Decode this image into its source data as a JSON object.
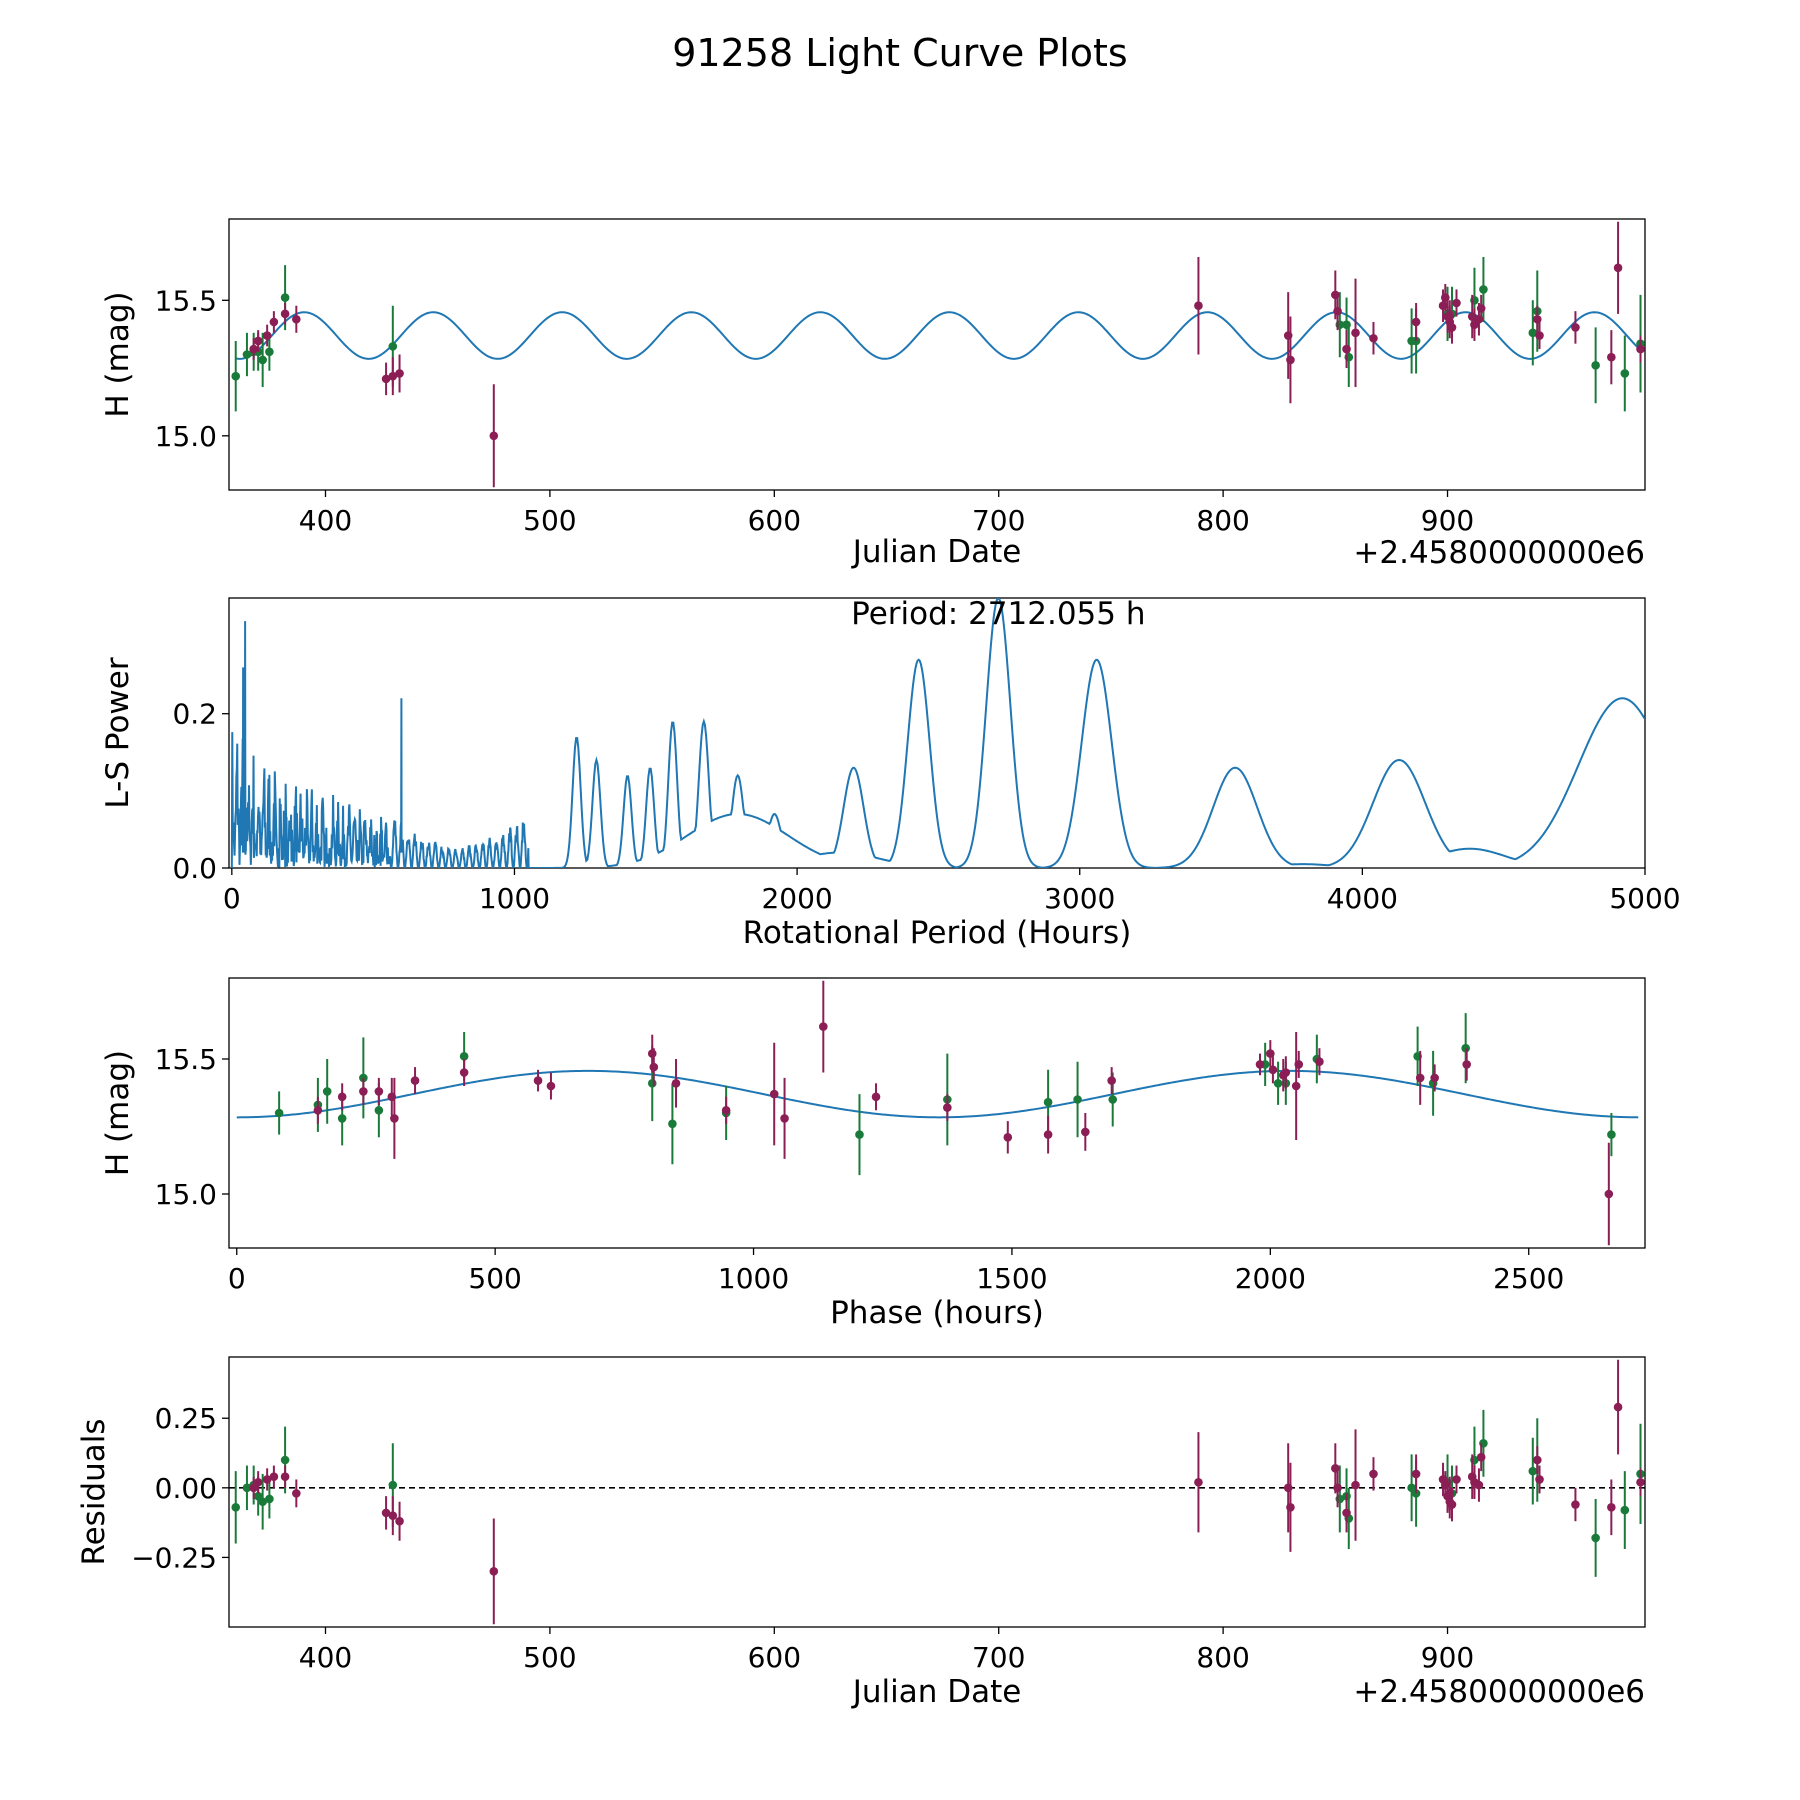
{
  "figure": {
    "title": "91258 Light Curve Plots",
    "colors": {
      "model": "#1f77b4",
      "band_green": "#1a7a3a",
      "band_purple": "#8b1f55",
      "frame": "#000000",
      "zero_line": "#000000"
    }
  },
  "chart_data": [
    {
      "name": "light-curve",
      "type": "scatter",
      "xlabel": "Julian Date",
      "ylabel": "H (mag)",
      "x_offset_label": "+2.4580000000e6",
      "xlim": [
        357,
        988
      ],
      "ylim": [
        14.8,
        15.8
      ],
      "xticks": [
        400,
        500,
        600,
        700,
        800,
        900
      ],
      "yticks": [
        15.0,
        15.5
      ],
      "ytick_labels": [
        "15.0",
        "15.5"
      ],
      "model": {
        "mean": 15.37,
        "amplitude": 0.086,
        "period_days": 57.5,
        "phase_ref": 390.5
      },
      "series": [
        {
          "name": "green-band",
          "color": "#1a7a3a",
          "x": [
            360,
            365,
            368,
            370,
            372,
            375,
            382,
            430,
            852,
            855,
            856,
            884,
            886,
            900,
            902,
            912,
            916,
            938,
            940,
            966,
            979,
            986
          ],
          "y": [
            15.22,
            15.3,
            15.31,
            15.31,
            15.28,
            15.31,
            15.51,
            15.33,
            15.41,
            15.41,
            15.29,
            15.35,
            15.35,
            15.45,
            15.45,
            15.5,
            15.54,
            15.38,
            15.46,
            15.26,
            15.23,
            15.34
          ],
          "err": [
            0.13,
            0.08,
            0.07,
            0.07,
            0.1,
            0.07,
            0.12,
            0.15,
            0.12,
            0.1,
            0.11,
            0.12,
            0.12,
            0.1,
            0.1,
            0.12,
            0.12,
            0.12,
            0.15,
            0.14,
            0.14,
            0.18
          ]
        },
        {
          "name": "purple-band",
          "color": "#8b1f55",
          "x": [
            368,
            370,
            374,
            377,
            382,
            387,
            427,
            430,
            433,
            475,
            789,
            829,
            830,
            850,
            851,
            855,
            859,
            867,
            886,
            898,
            899,
            900,
            901,
            901,
            902,
            904,
            911,
            912,
            914,
            915,
            940,
            941,
            957,
            973,
            976,
            986
          ],
          "y": [
            15.32,
            15.35,
            15.37,
            15.42,
            15.45,
            15.43,
            15.21,
            15.22,
            15.23,
            15.0,
            15.48,
            15.37,
            15.28,
            15.52,
            15.46,
            15.32,
            15.38,
            15.36,
            15.42,
            15.48,
            15.51,
            15.44,
            15.42,
            15.44,
            15.4,
            15.49,
            15.44,
            15.41,
            15.43,
            15.47,
            15.43,
            15.37,
            15.4,
            15.29,
            15.62,
            15.32
          ],
          "err": [
            0.04,
            0.04,
            0.04,
            0.04,
            0.04,
            0.05,
            0.06,
            0.07,
            0.07,
            0.19,
            0.18,
            0.16,
            0.16,
            0.09,
            0.07,
            0.07,
            0.2,
            0.06,
            0.07,
            0.06,
            0.05,
            0.06,
            0.06,
            0.06,
            0.06,
            0.05,
            0.08,
            0.06,
            0.06,
            0.05,
            0.05,
            0.05,
            0.06,
            0.1,
            0.17,
            0.05
          ]
        }
      ]
    },
    {
      "name": "periodogram",
      "type": "line",
      "xlabel": "Rotational Period (Hours)",
      "ylabel": "L-S Power",
      "xlim": [
        -10,
        5000
      ],
      "ylim": [
        0,
        0.35
      ],
      "xticks": [
        0,
        1000,
        2000,
        3000,
        4000,
        5000
      ],
      "yticks": [
        0.0,
        0.2
      ],
      "ytick_labels": [
        "0.0",
        "0.2"
      ],
      "annotation": "Period: 2712.055 h",
      "peaks": [
        {
          "x": 40,
          "y": 0.26,
          "w": 6
        },
        {
          "x": 47,
          "y": 0.32,
          "w": 5
        },
        {
          "x": 600,
          "y": 0.22,
          "w": 8
        },
        {
          "x": 1220,
          "y": 0.17,
          "w": 20
        },
        {
          "x": 1290,
          "y": 0.14,
          "w": 20
        },
        {
          "x": 1400,
          "y": 0.12,
          "w": 20
        },
        {
          "x": 1480,
          "y": 0.13,
          "w": 20
        },
        {
          "x": 1560,
          "y": 0.19,
          "w": 22
        },
        {
          "x": 1670,
          "y": 0.19,
          "w": 25
        },
        {
          "x": 1790,
          "y": 0.12,
          "w": 30
        },
        {
          "x": 1920,
          "y": 0.07,
          "w": 35
        },
        {
          "x": 2200,
          "y": 0.13,
          "w": 50
        },
        {
          "x": 2430,
          "y": 0.27,
          "w": 55
        },
        {
          "x": 2712,
          "y": 0.35,
          "w": 60
        },
        {
          "x": 3060,
          "y": 0.27,
          "w": 75
        },
        {
          "x": 3550,
          "y": 0.13,
          "w": 110
        },
        {
          "x": 4130,
          "y": 0.14,
          "w": 130
        },
        {
          "x": 4920,
          "y": 0.22,
          "w": 220
        }
      ],
      "dips": [
        {
          "x": 1790,
          "y": 0.07,
          "w": 250
        },
        {
          "x": 2150,
          "y": 0.02,
          "w": 200
        },
        {
          "x": 3790,
          "y": 0.005,
          "w": 150
        },
        {
          "x": 4380,
          "y": 0.025,
          "w": 180
        }
      ]
    },
    {
      "name": "phased-curve",
      "type": "scatter",
      "xlabel": "Phase (hours)",
      "ylabel": "H (mag)",
      "xlim": [
        -15,
        2725
      ],
      "ylim": [
        14.8,
        15.8
      ],
      "xticks": [
        0,
        500,
        1000,
        1500,
        2000,
        2500
      ],
      "yticks": [
        15.0,
        15.5
      ],
      "ytick_labels": [
        "15.0",
        "15.5"
      ],
      "model": {
        "mean": 15.37,
        "amplitude": 0.086,
        "period": 1356,
        "phase_peak": 680
      },
      "series": [
        {
          "name": "green-band",
          "color": "#1a7a3a",
          "x": [
            82,
            157,
            175,
            204,
            245,
            275,
            440,
            804,
            843,
            947,
            1205,
            1375,
            1570,
            1627,
            1695,
            1990,
            2015,
            2030,
            2090,
            2285,
            2315,
            2378,
            2660
          ],
          "y": [
            15.3,
            15.33,
            15.38,
            15.28,
            15.43,
            15.31,
            15.51,
            15.41,
            15.26,
            15.3,
            15.22,
            15.35,
            15.34,
            15.35,
            15.35,
            15.48,
            15.41,
            15.41,
            15.5,
            15.51,
            15.41,
            15.54,
            15.22
          ],
          "err": [
            0.08,
            0.1,
            0.12,
            0.1,
            0.15,
            0.1,
            0.09,
            0.14,
            0.15,
            0.1,
            0.15,
            0.17,
            0.12,
            0.14,
            0.1,
            0.08,
            0.08,
            0.08,
            0.09,
            0.11,
            0.12,
            0.13,
            0.08
          ]
        },
        {
          "name": "purple-band",
          "color": "#8b1f55",
          "x": [
            157,
            204,
            245,
            275,
            300,
            305,
            345,
            440,
            583,
            608,
            804,
            807,
            850,
            947,
            1040,
            1060,
            1135,
            1237,
            1375,
            1492,
            1570,
            1642,
            1693,
            1980,
            2000,
            2005,
            2025,
            2030,
            2050,
            2055,
            2095,
            2290,
            2318,
            2380,
            2655
          ],
          "y": [
            15.31,
            15.36,
            15.38,
            15.38,
            15.36,
            15.28,
            15.42,
            15.45,
            15.42,
            15.4,
            15.52,
            15.47,
            15.41,
            15.31,
            15.37,
            15.28,
            15.62,
            15.36,
            15.32,
            15.21,
            15.22,
            15.23,
            15.42,
            15.48,
            15.52,
            15.46,
            15.44,
            15.45,
            15.4,
            15.48,
            15.49,
            15.43,
            15.43,
            15.48,
            15.0
          ],
          "err": [
            0.05,
            0.05,
            0.05,
            0.05,
            0.07,
            0.15,
            0.05,
            0.05,
            0.04,
            0.05,
            0.07,
            0.07,
            0.09,
            0.05,
            0.19,
            0.15,
            0.17,
            0.05,
            0.05,
            0.06,
            0.07,
            0.07,
            0.05,
            0.04,
            0.05,
            0.05,
            0.06,
            0.06,
            0.2,
            0.05,
            0.05,
            0.1,
            0.05,
            0.06,
            0.19
          ]
        }
      ]
    },
    {
      "name": "residuals",
      "type": "scatter",
      "xlabel": "Julian Date",
      "ylabel": "Residuals",
      "x_offset_label": "+2.4580000000e6",
      "xlim": [
        357,
        988
      ],
      "ylim": [
        -0.5,
        0.47
      ],
      "xticks": [
        400,
        500,
        600,
        700,
        800,
        900
      ],
      "yticks": [
        -0.25,
        0.0,
        0.25
      ],
      "ytick_labels": [
        "−0.25",
        "0.00",
        "0.25"
      ],
      "zero_line": true,
      "series": [
        {
          "name": "green-band",
          "color": "#1a7a3a",
          "x": [
            360,
            365,
            368,
            370,
            372,
            375,
            382,
            430,
            852,
            855,
            856,
            884,
            886,
            900,
            902,
            912,
            916,
            938,
            940,
            966,
            979,
            986
          ],
          "y": [
            -0.07,
            0.0,
            0.01,
            -0.03,
            -0.05,
            -0.04,
            0.1,
            0.01,
            -0.04,
            -0.03,
            -0.11,
            0.0,
            -0.02,
            0.02,
            -0.02,
            0.1,
            0.16,
            0.06,
            0.1,
            -0.18,
            -0.08,
            0.05
          ],
          "err": [
            0.13,
            0.08,
            0.07,
            0.07,
            0.1,
            0.07,
            0.12,
            0.15,
            0.12,
            0.1,
            0.11,
            0.12,
            0.12,
            0.1,
            0.1,
            0.12,
            0.12,
            0.12,
            0.15,
            0.14,
            0.14,
            0.18
          ]
        },
        {
          "name": "purple-band",
          "color": "#8b1f55",
          "x": [
            368,
            370,
            374,
            377,
            382,
            387,
            427,
            430,
            433,
            475,
            789,
            829,
            830,
            850,
            851,
            855,
            859,
            867,
            886,
            898,
            899,
            900,
            901,
            901,
            902,
            904,
            911,
            912,
            914,
            915,
            940,
            941,
            957,
            973,
            976,
            986
          ],
          "y": [
            0.0,
            0.02,
            0.03,
            0.04,
            0.04,
            -0.02,
            -0.09,
            -0.1,
            -0.12,
            -0.3,
            0.02,
            0.0,
            -0.07,
            0.07,
            0.0,
            -0.09,
            0.01,
            0.05,
            0.05,
            0.03,
            0.01,
            -0.03,
            -0.05,
            -0.02,
            -0.06,
            0.03,
            0.04,
            0.02,
            0.01,
            0.11,
            0.1,
            0.03,
            -0.06,
            -0.07,
            0.29,
            0.02
          ],
          "err": [
            0.04,
            0.04,
            0.04,
            0.04,
            0.04,
            0.05,
            0.06,
            0.07,
            0.07,
            0.19,
            0.18,
            0.16,
            0.16,
            0.09,
            0.07,
            0.07,
            0.2,
            0.06,
            0.07,
            0.06,
            0.05,
            0.06,
            0.06,
            0.06,
            0.06,
            0.05,
            0.08,
            0.06,
            0.06,
            0.05,
            0.05,
            0.05,
            0.06,
            0.1,
            0.17,
            0.05
          ]
        }
      ]
    }
  ]
}
